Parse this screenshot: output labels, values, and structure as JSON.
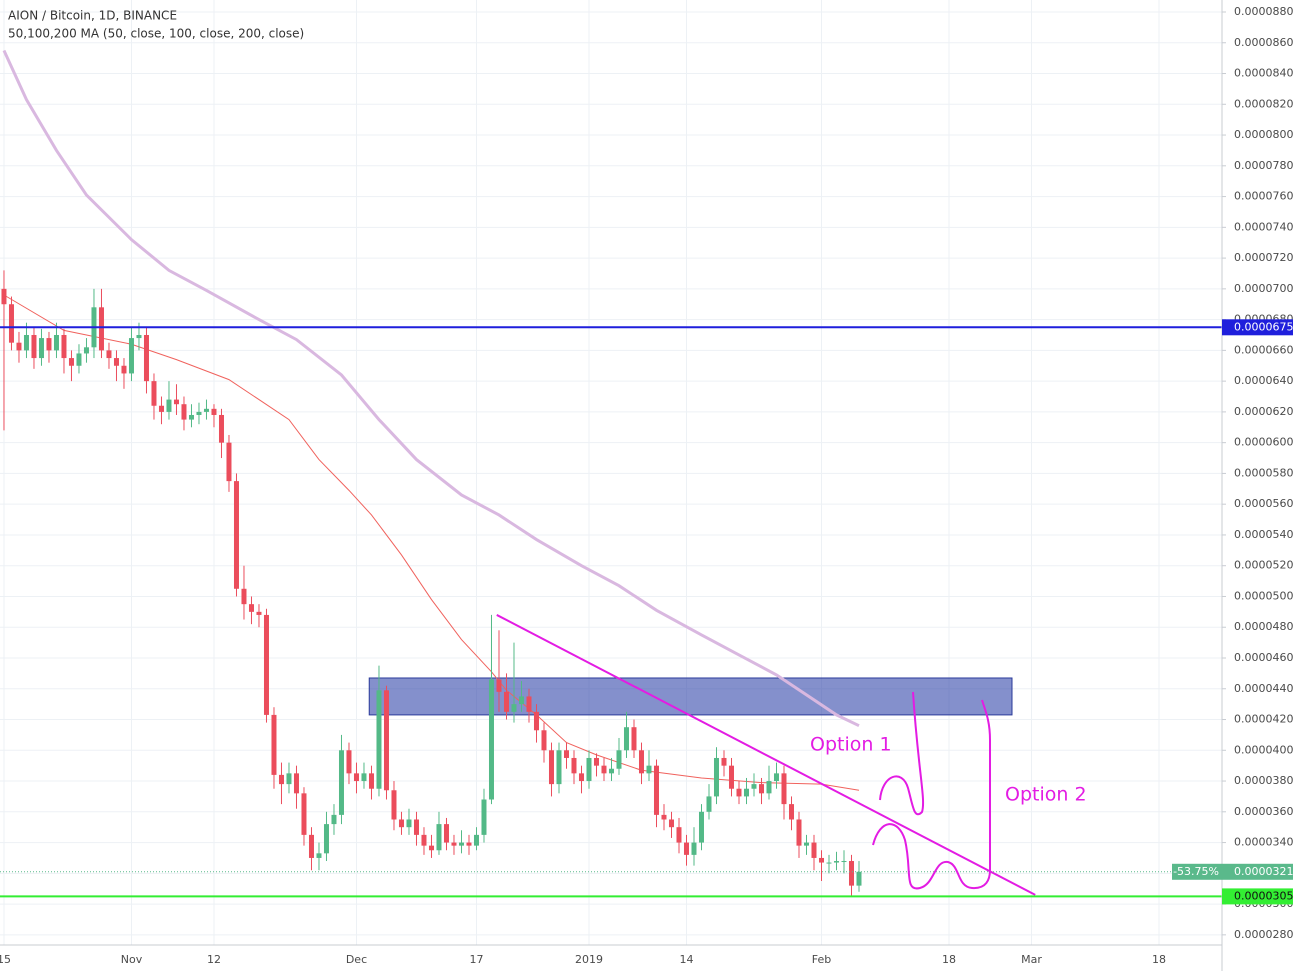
{
  "chart_data": {
    "type": "candlestick",
    "title": "AION / Bitcoin, 1D, BINANCE",
    "subtitle": "50,100,200 MA (50, close, 100, close, 200, close)",
    "up_color": "#53b987",
    "down_color": "#eb4d5c",
    "grid": true,
    "xlim": [
      -0.53,
      162.4
    ],
    "ylim": [
      2.734e-05,
      8.878e-05
    ],
    "xticks": [
      {
        "value": 0,
        "label": "15"
      },
      {
        "value": 17,
        "label": "Nov"
      },
      {
        "value": 28,
        "label": "12"
      },
      {
        "value": 47,
        "label": "Dec"
      },
      {
        "value": 63,
        "label": "17"
      },
      {
        "value": 78,
        "label": "2019"
      },
      {
        "value": 91,
        "label": "14"
      },
      {
        "value": 109,
        "label": "Feb"
      },
      {
        "value": 126,
        "label": "18"
      },
      {
        "value": 137,
        "label": "Mar"
      },
      {
        "value": 154,
        "label": "18"
      }
    ],
    "yticks": [
      {
        "value": 2.8e-05,
        "label": "0.0000280"
      },
      {
        "value": 3e-05,
        "label": "0.0000300"
      },
      {
        "value": 3.2e-05,
        "label": "0.0000320"
      },
      {
        "value": 3.4e-05,
        "label": "0.0000340"
      },
      {
        "value": 3.6e-05,
        "label": "0.0000360"
      },
      {
        "value": 3.8e-05,
        "label": "0.0000380"
      },
      {
        "value": 4e-05,
        "label": "0.0000400"
      },
      {
        "value": 4.2e-05,
        "label": "0.0000420"
      },
      {
        "value": 4.4e-05,
        "label": "0.0000440"
      },
      {
        "value": 4.6e-05,
        "label": "0.0000460"
      },
      {
        "value": 4.8e-05,
        "label": "0.0000480"
      },
      {
        "value": 5e-05,
        "label": "0.0000500"
      },
      {
        "value": 5.2e-05,
        "label": "0.0000520"
      },
      {
        "value": 5.4e-05,
        "label": "0.0000540"
      },
      {
        "value": 5.6e-05,
        "label": "0.0000560"
      },
      {
        "value": 5.8e-05,
        "label": "0.0000580"
      },
      {
        "value": 6e-05,
        "label": "0.0000600"
      },
      {
        "value": 6.2e-05,
        "label": "0.0000620"
      },
      {
        "value": 6.4e-05,
        "label": "0.0000640"
      },
      {
        "value": 6.6e-05,
        "label": "0.0000660"
      },
      {
        "value": 6.8e-05,
        "label": "0.0000680"
      },
      {
        "value": 7e-05,
        "label": "0.0000700"
      },
      {
        "value": 7.2e-05,
        "label": "0.0000720"
      },
      {
        "value": 7.4e-05,
        "label": "0.0000740"
      },
      {
        "value": 7.6e-05,
        "label": "0.0000760"
      },
      {
        "value": 7.8e-05,
        "label": "0.0000780"
      },
      {
        "value": 8e-05,
        "label": "0.0000800"
      },
      {
        "value": 8.2e-05,
        "label": "0.0000820"
      },
      {
        "value": 8.4e-05,
        "label": "0.0000840"
      },
      {
        "value": 8.6e-05,
        "label": "0.0000860"
      },
      {
        "value": 8.8e-05,
        "label": "0.0000880"
      }
    ],
    "candles": {
      "x": [
        0,
        1,
        2,
        3,
        4,
        5,
        6,
        7,
        8,
        9,
        10,
        11,
        12,
        13,
        14,
        15,
        16,
        17,
        18,
        19,
        20,
        21,
        22,
        23,
        24,
        25,
        26,
        27,
        28,
        29,
        30,
        31,
        32,
        33,
        34,
        35,
        36,
        37,
        38,
        39,
        40,
        41,
        42,
        43,
        44,
        45,
        46,
        47,
        48,
        49,
        50,
        51,
        52,
        53,
        54,
        55,
        56,
        57,
        58,
        59,
        60,
        61,
        62,
        63,
        64,
        65,
        66,
        67,
        68,
        69,
        70,
        71,
        72,
        73,
        74,
        75,
        76,
        77,
        78,
        79,
        80,
        81,
        82,
        83,
        84,
        85,
        86,
        87,
        88,
        89,
        90,
        91,
        92,
        93,
        94,
        95,
        96,
        97,
        98,
        99,
        100,
        101,
        102,
        103,
        104,
        105,
        106,
        107,
        108,
        109,
        110,
        111,
        112,
        113,
        114
      ],
      "open": [
        7e-05,
        6.9e-05,
        6.65e-05,
        6.6e-05,
        6.7e-05,
        6.55e-05,
        6.68e-05,
        6.6e-05,
        6.7e-05,
        6.55e-05,
        6.5e-05,
        6.58e-05,
        6.62e-05,
        6.88e-05,
        6.6e-05,
        6.55e-05,
        6.5e-05,
        6.45e-05,
        6.68e-05,
        6.7e-05,
        6.4e-05,
        6.24e-05,
        6.2e-05,
        6.28e-05,
        6.25e-05,
        6.15e-05,
        6.18e-05,
        6.2e-05,
        6.22e-05,
        6.18e-05,
        6e-05,
        5.75e-05,
        5.05e-05,
        4.95e-05,
        4.9e-05,
        4.88e-05,
        4.23e-05,
        3.84e-05,
        3.78e-05,
        3.85e-05,
        3.72e-05,
        3.45e-05,
        3.3e-05,
        3.33e-05,
        3.52e-05,
        3.58e-05,
        4e-05,
        3.85e-05,
        3.8e-05,
        3.85e-05,
        3.75e-05,
        4.39e-05,
        3.74e-05,
        3.55e-05,
        3.5e-05,
        3.55e-05,
        3.45e-05,
        3.38e-05,
        3.35e-05,
        3.52e-05,
        3.4e-05,
        3.38e-05,
        3.4e-05,
        3.38e-05,
        3.45e-05,
        3.68e-05,
        4.46e-05,
        4.38e-05,
        4.25e-05,
        4.3e-05,
        4.35e-05,
        4.25e-05,
        4.13e-05,
        4e-05,
        3.78e-05,
        4e-05,
        3.95e-05,
        3.85e-05,
        3.8e-05,
        3.95e-05,
        3.9e-05,
        3.85e-05,
        3.88e-05,
        4e-05,
        4.15e-05,
        4e-05,
        3.85e-05,
        3.9e-05,
        3.58e-05,
        3.55e-05,
        3.5e-05,
        3.4e-05,
        3.32e-05,
        3.4e-05,
        3.6e-05,
        3.7e-05,
        3.95e-05,
        3.9e-05,
        3.75e-05,
        3.7e-05,
        3.75e-05,
        3.78e-05,
        3.72e-05,
        3.8e-05,
        3.85e-05,
        3.65e-05,
        3.55e-05,
        3.38e-05,
        3.4e-05,
        3.3e-05,
        3.27e-05,
        3.27e-05,
        3.28e-05,
        3.28e-05,
        3.12e-05
      ],
      "high": [
        7.12e-05,
        6.95e-05,
        6.72e-05,
        6.78e-05,
        6.75e-05,
        6.74e-05,
        6.72e-05,
        6.78e-05,
        6.74e-05,
        6.6e-05,
        6.64e-05,
        6.68e-05,
        7e-05,
        7e-05,
        6.65e-05,
        6.6e-05,
        6.55e-05,
        6.75e-05,
        6.78e-05,
        6.75e-05,
        6.45e-05,
        6.3e-05,
        6.4e-05,
        6.38e-05,
        6.3e-05,
        6.25e-05,
        6.26e-05,
        6.28e-05,
        6.25e-05,
        6.22e-05,
        6.05e-05,
        5.8e-05,
        5.2e-05,
        5e-05,
        4.95e-05,
        4.92e-05,
        4.28e-05,
        3.92e-05,
        3.92e-05,
        3.9e-05,
        3.76e-05,
        3.5e-05,
        3.4e-05,
        3.6e-05,
        3.65e-05,
        4.1e-05,
        4.05e-05,
        3.92e-05,
        3.92e-05,
        3.9e-05,
        4.55e-05,
        4.42e-05,
        3.8e-05,
        3.6e-05,
        3.62e-05,
        3.6e-05,
        3.5e-05,
        3.45e-05,
        3.6e-05,
        3.56e-05,
        3.45e-05,
        3.48e-05,
        3.45e-05,
        3.5e-05,
        3.75e-05,
        4.88e-05,
        4.78e-05,
        4.5e-05,
        4.7e-05,
        4.45e-05,
        4.4e-05,
        4.3e-05,
        4.18e-05,
        4.05e-05,
        4.05e-05,
        4.05e-05,
        4e-05,
        3.9e-05,
        4e-05,
        3.98e-05,
        3.95e-05,
        3.95e-05,
        4.08e-05,
        4.25e-05,
        4.2e-05,
        4.05e-05,
        4e-05,
        3.94e-05,
        3.65e-05,
        3.6e-05,
        3.56e-05,
        3.45e-05,
        3.5e-05,
        3.65e-05,
        3.78e-05,
        4.02e-05,
        4e-05,
        3.95e-05,
        3.8e-05,
        3.82e-05,
        3.85e-05,
        3.82e-05,
        3.9e-05,
        3.92e-05,
        3.9e-05,
        3.7e-05,
        3.6e-05,
        3.45e-05,
        3.45e-05,
        3.35e-05,
        3.32e-05,
        3.34e-05,
        3.35e-05,
        3.32e-05,
        3.28e-05
      ],
      "low": [
        6.08e-05,
        6.6e-05,
        6.52e-05,
        6.55e-05,
        6.48e-05,
        6.5e-05,
        6.52e-05,
        6.55e-05,
        6.45e-05,
        6.4e-05,
        6.45e-05,
        6.52e-05,
        6.55e-05,
        6.55e-05,
        6.48e-05,
        6.4e-05,
        6.35e-05,
        6.4e-05,
        6.6e-05,
        6.32e-05,
        6.15e-05,
        6.12e-05,
        6.15e-05,
        6.18e-05,
        6.08e-05,
        6.1e-05,
        6.12e-05,
        6.15e-05,
        6.1e-05,
        5.9e-05,
        5.68e-05,
        5e-05,
        4.85e-05,
        4.82e-05,
        4.8e-05,
        4.18e-05,
        3.75e-05,
        3.65e-05,
        3.72e-05,
        3.62e-05,
        3.38e-05,
        3.22e-05,
        3.22e-05,
        3.28e-05,
        3.45e-05,
        3.52e-05,
        3.78e-05,
        3.72e-05,
        3.75e-05,
        3.68e-05,
        3.7e-05,
        3.68e-05,
        3.48e-05,
        3.45e-05,
        3.45e-05,
        3.38e-05,
        3.32e-05,
        3.3e-05,
        3.32e-05,
        3.35e-05,
        3.32e-05,
        3.33e-05,
        3.32e-05,
        3.35e-05,
        3.4e-05,
        3.65e-05,
        4.25e-05,
        4.2e-05,
        4.18e-05,
        4.25e-05,
        4.18e-05,
        4.05e-05,
        3.92e-05,
        3.7e-05,
        3.72e-05,
        3.88e-05,
        3.78e-05,
        3.72e-05,
        3.75e-05,
        3.83e-05,
        3.8e-05,
        3.8e-05,
        3.84e-05,
        3.95e-05,
        3.95e-05,
        3.78e-05,
        3.8e-05,
        3.5e-05,
        3.48e-05,
        3.43e-05,
        3.33e-05,
        3.25e-05,
        3.25e-05,
        3.35e-05,
        3.55e-05,
        3.65e-05,
        3.83e-05,
        3.7e-05,
        3.65e-05,
        3.65e-05,
        3.7e-05,
        3.65e-05,
        3.68e-05,
        3.75e-05,
        3.55e-05,
        3.48e-05,
        3.3e-05,
        3.32e-05,
        3.22e-05,
        3.15e-05,
        3.2e-05,
        3.22e-05,
        3.2e-05,
        3.05e-05,
        3.08e-05
      ],
      "close": [
        6.9e-05,
        6.65e-05,
        6.6e-05,
        6.7e-05,
        6.55e-05,
        6.68e-05,
        6.6e-05,
        6.7e-05,
        6.55e-05,
        6.5e-05,
        6.58e-05,
        6.62e-05,
        6.88e-05,
        6.6e-05,
        6.55e-05,
        6.5e-05,
        6.45e-05,
        6.68e-05,
        6.7e-05,
        6.4e-05,
        6.24e-05,
        6.2e-05,
        6.28e-05,
        6.25e-05,
        6.15e-05,
        6.18e-05,
        6.2e-05,
        6.22e-05,
        6.18e-05,
        6e-05,
        5.75e-05,
        5.05e-05,
        4.95e-05,
        4.9e-05,
        4.88e-05,
        4.23e-05,
        3.84e-05,
        3.78e-05,
        3.85e-05,
        3.72e-05,
        3.45e-05,
        3.3e-05,
        3.33e-05,
        3.52e-05,
        3.58e-05,
        4e-05,
        3.85e-05,
        3.8e-05,
        3.85e-05,
        3.75e-05,
        4.39e-05,
        3.74e-05,
        3.55e-05,
        3.5e-05,
        3.55e-05,
        3.45e-05,
        3.38e-05,
        3.35e-05,
        3.52e-05,
        3.4e-05,
        3.38e-05,
        3.4e-05,
        3.38e-05,
        3.45e-05,
        3.68e-05,
        4.46e-05,
        4.38e-05,
        4.25e-05,
        4.3e-05,
        4.35e-05,
        4.25e-05,
        4.13e-05,
        4e-05,
        3.78e-05,
        4e-05,
        3.95e-05,
        3.85e-05,
        3.8e-05,
        3.95e-05,
        3.9e-05,
        3.85e-05,
        3.88e-05,
        4e-05,
        4.15e-05,
        4e-05,
        3.85e-05,
        3.9e-05,
        3.58e-05,
        3.55e-05,
        3.5e-05,
        3.4e-05,
        3.32e-05,
        3.4e-05,
        3.6e-05,
        3.7e-05,
        3.95e-05,
        3.9e-05,
        3.75e-05,
        3.7e-05,
        3.75e-05,
        3.78e-05,
        3.72e-05,
        3.8e-05,
        3.85e-05,
        3.65e-05,
        3.55e-05,
        3.38e-05,
        3.4e-05,
        3.3e-05,
        3.27e-05,
        3.27e-05,
        3.28e-05,
        3.28e-05,
        3.12e-05,
        3.21e-05
      ]
    },
    "moving_averages": [
      {
        "color": "#f0625d",
        "x": [
          0,
          8,
          17,
          23,
          30,
          34,
          38,
          42,
          46,
          49,
          53,
          57,
          61,
          65,
          67,
          71,
          75,
          79,
          85,
          93,
          101,
          109,
          114
        ],
        "values": [
          6.96e-05,
          6.73e-05,
          6.64e-05,
          6.54e-05,
          6.41e-05,
          6.28e-05,
          6.15e-05,
          5.89e-05,
          5.69e-05,
          5.53e-05,
          5.27e-05,
          4.98e-05,
          4.72e-05,
          4.51e-05,
          4.39e-05,
          4.23e-05,
          4.05e-05,
          3.97e-05,
          3.87e-05,
          3.82e-05,
          3.79e-05,
          3.78e-05,
          3.74e-05
        ]
      },
      {
        "color": "#d9b8e0",
        "x": [
          0,
          3,
          7,
          11,
          17,
          22,
          27,
          34,
          39,
          45,
          50,
          55,
          61,
          66,
          71,
          77,
          82,
          87,
          93,
          98,
          103,
          107,
          111,
          114
        ],
        "values": [
          8.55e-05,
          8.23e-05,
          7.9e-05,
          7.61e-05,
          7.32e-05,
          7.12e-05,
          6.99e-05,
          6.8e-05,
          6.67e-05,
          6.44e-05,
          6.15e-05,
          5.89e-05,
          5.66e-05,
          5.53e-05,
          5.37e-05,
          5.2e-05,
          5.07e-05,
          4.91e-05,
          4.75e-05,
          4.62e-05,
          4.49e-05,
          4.36e-05,
          4.23e-05,
          4.16e-05
        ]
      }
    ],
    "zone": {
      "x": [
        48.7,
        134.4
      ],
      "y": [
        4.23e-05,
        4.47e-05
      ]
    },
    "trendline": {
      "color": "#e31ce3",
      "x": [
        65.7,
        137.5
      ],
      "values": [
        4.88e-05,
        3.06e-05
      ]
    },
    "levels": [
      {
        "value": 6.75e-05,
        "label": "0.0000675",
        "color": "#1f1fdc"
      },
      {
        "value": 3.05e-05,
        "label": "0.0000305",
        "color": "#33ee33"
      }
    ],
    "last_price": {
      "value": 3.21e-05,
      "label": "0.0000321",
      "change": "-53.75%",
      "color": "#5ab98b"
    },
    "annotations": [
      "Option 1",
      "Option 2"
    ]
  }
}
